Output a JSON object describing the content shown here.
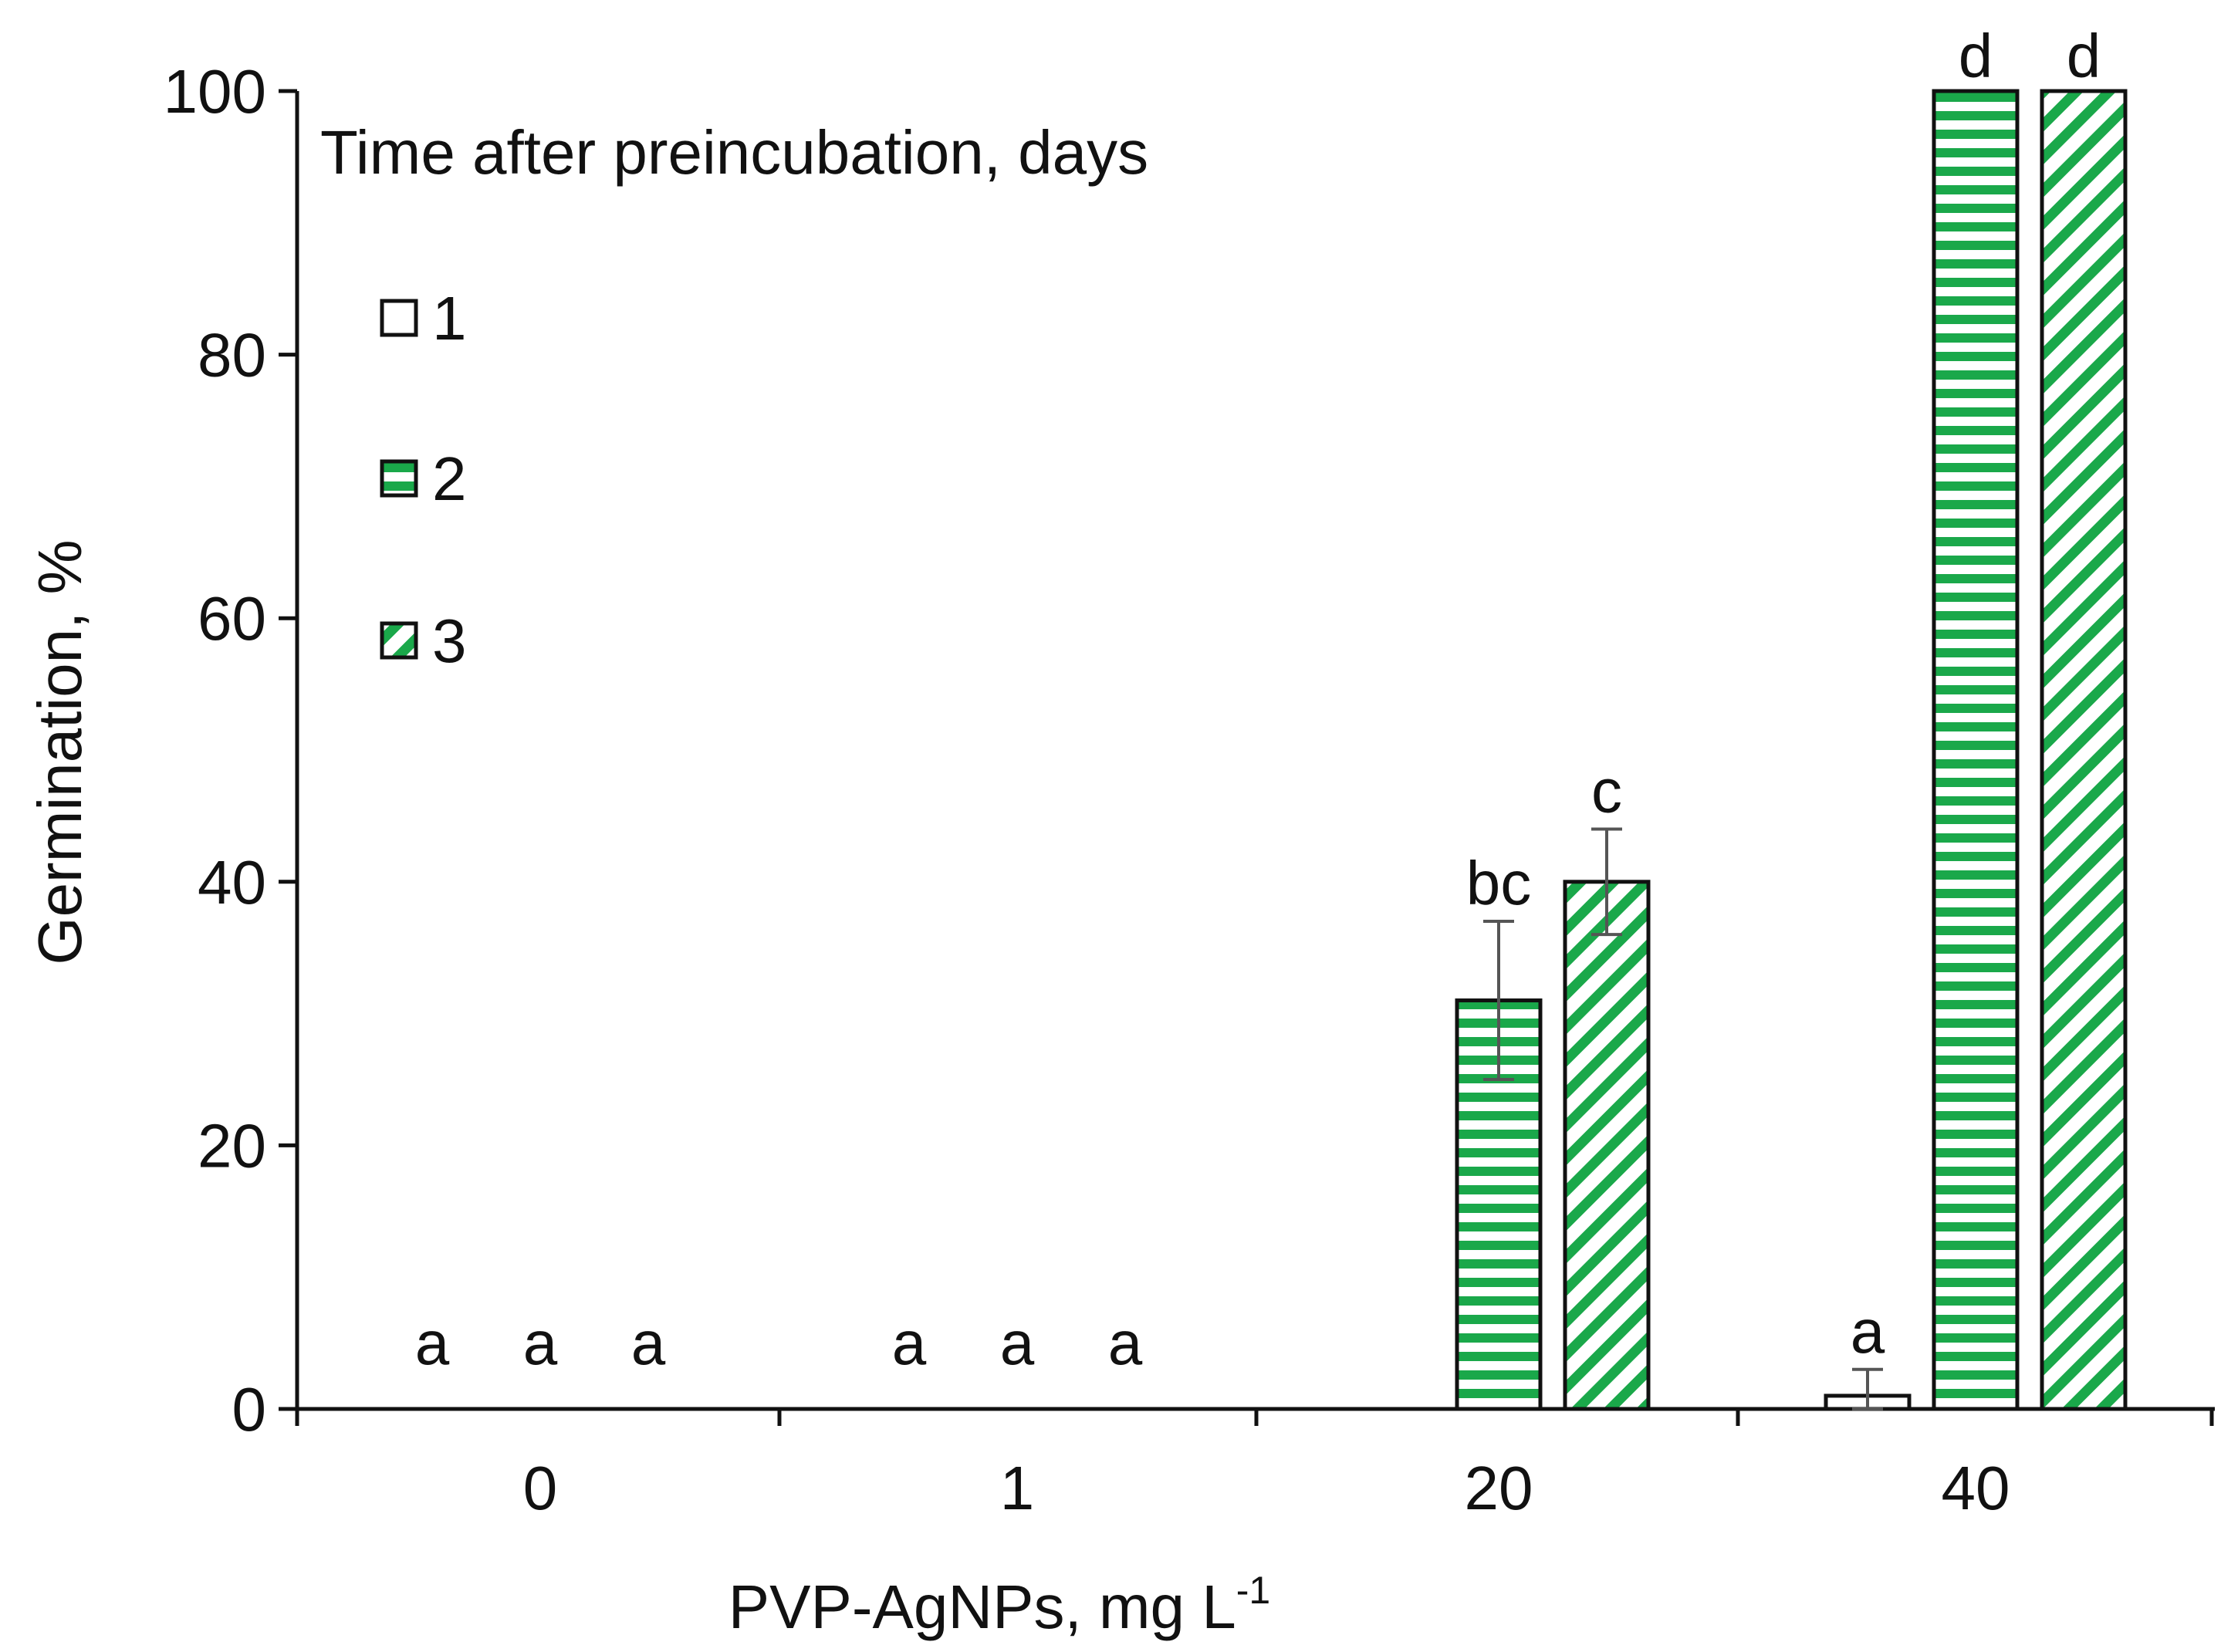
{
  "chart_data": {
    "type": "bar",
    "title": "",
    "xlabel": "PVP-AgNPs, mg L",
    "xlabel_sup": "-1",
    "ylabel": "Germination, %",
    "ylim": [
      0,
      100
    ],
    "yticks": [
      0,
      20,
      40,
      60,
      80,
      100
    ],
    "ytick_labels": [
      "0",
      "20",
      "40",
      "60",
      "80",
      "100"
    ],
    "categories": [
      "0",
      "1",
      "20",
      "40"
    ],
    "legend_title": "Time after preincubation, days",
    "legend_position": "top-left",
    "series": [
      {
        "name": "1",
        "pattern": "none",
        "values": [
          0,
          0,
          0,
          1
        ],
        "errors": [
          0,
          0,
          0,
          2
        ],
        "letters": [
          "a",
          "a",
          null,
          "a"
        ]
      },
      {
        "name": "2",
        "pattern": "horizontal-stripes",
        "values": [
          0,
          0,
          31,
          100
        ],
        "errors": [
          0,
          0,
          6,
          0
        ],
        "letters": [
          "a",
          "a",
          "bc",
          "d"
        ]
      },
      {
        "name": "3",
        "pattern": "diagonal-stripes",
        "values": [
          0,
          0,
          40,
          100
        ],
        "errors": [
          0,
          0,
          4,
          0
        ],
        "letters": [
          "a",
          "a",
          "c",
          "d"
        ]
      }
    ]
  },
  "colors": {
    "stripe": "#1aa84a",
    "axis": "#111111",
    "error_bar": "#555555",
    "bar_fill": "#ffffff"
  }
}
